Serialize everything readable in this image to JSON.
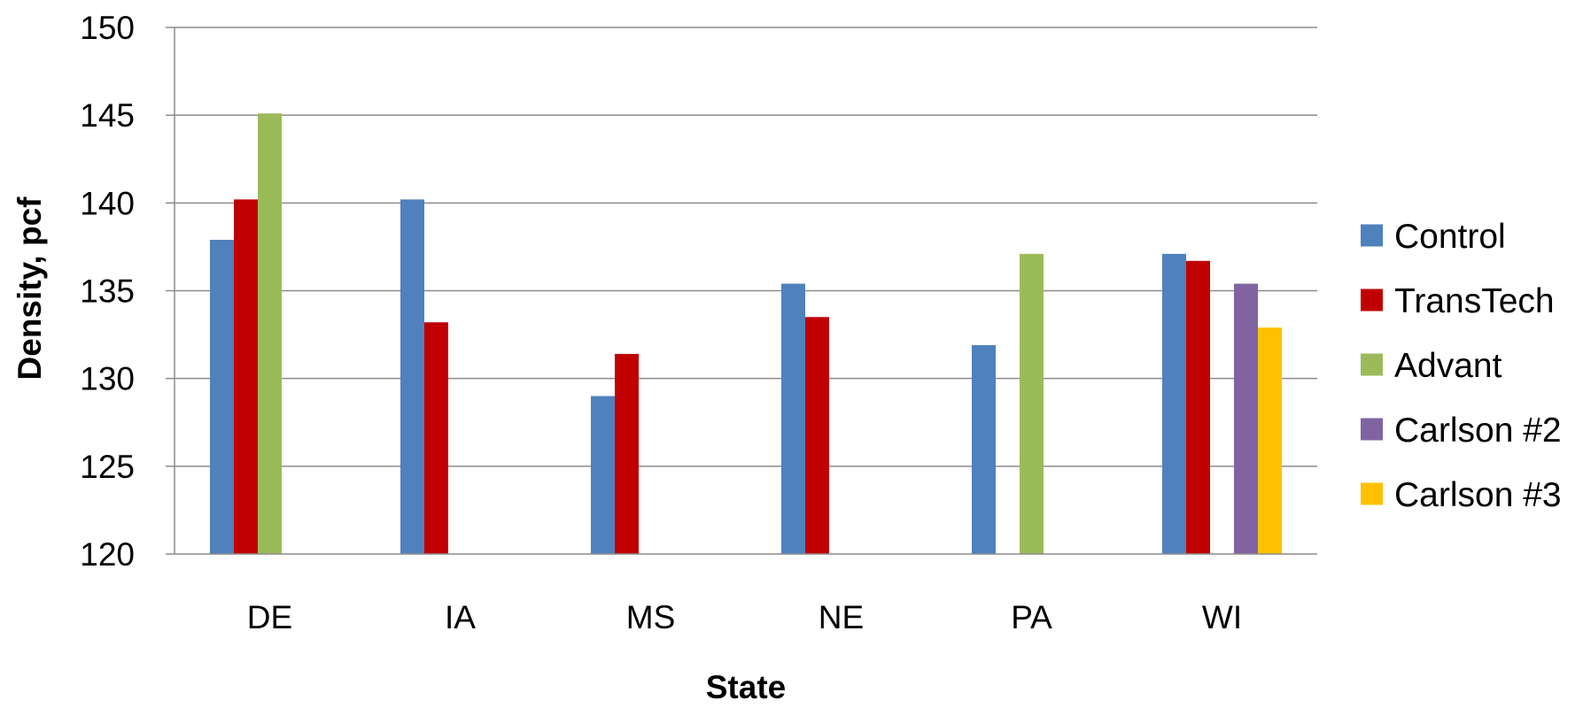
{
  "chart_data": {
    "type": "bar",
    "xlabel": "State",
    "ylabel": "Density, pcf",
    "ylim": [
      120,
      150
    ],
    "yticks": [
      120,
      125,
      130,
      135,
      140,
      145,
      150
    ],
    "grid": true,
    "legend_position": "right",
    "categories": [
      "DE",
      "IA",
      "MS",
      "NE",
      "PA",
      "WI"
    ],
    "series": [
      {
        "name": "Control",
        "color": "#4F81BD",
        "values": [
          137.9,
          140.2,
          129.0,
          135.4,
          131.9,
          137.1
        ]
      },
      {
        "name": "TransTech",
        "color": "#C00000",
        "values": [
          140.2,
          133.2,
          131.4,
          133.5,
          null,
          136.7
        ]
      },
      {
        "name": "Advant",
        "color": "#9BBB59",
        "values": [
          145.1,
          null,
          null,
          null,
          137.1,
          null
        ]
      },
      {
        "name": "Carlson #2",
        "color": "#8064A2",
        "values": [
          null,
          null,
          null,
          null,
          null,
          135.4
        ]
      },
      {
        "name": "Carlson #3",
        "color": "#FFC000",
        "values": [
          null,
          null,
          null,
          null,
          null,
          132.9
        ]
      }
    ]
  }
}
